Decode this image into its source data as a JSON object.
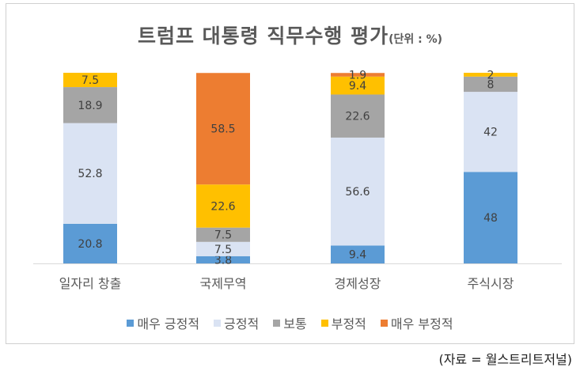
{
  "chart_data": {
    "type": "bar",
    "stacked": true,
    "title": "트럼프 대통령 직무수행 평가",
    "unit_label": "(단위 : %)",
    "categories": [
      "일자리 창출",
      "국제무역",
      "경제성장",
      "주식시장"
    ],
    "series": [
      {
        "name": "매우 긍정적",
        "color": "#5b9bd5",
        "values": [
          20.8,
          3.8,
          9.4,
          48
        ]
      },
      {
        "name": "긍정적",
        "color": "#dae3f3",
        "values": [
          52.8,
          7.5,
          56.6,
          42
        ]
      },
      {
        "name": "보통",
        "color": "#a5a5a5",
        "values": [
          18.9,
          7.5,
          22.6,
          8
        ]
      },
      {
        "name": "부정적",
        "color": "#ffc000",
        "values": [
          7.5,
          22.6,
          9.4,
          2
        ]
      },
      {
        "name": "매우 부정적",
        "color": "#ed7d31",
        "values": [
          null,
          58.5,
          1.9,
          null
        ]
      }
    ],
    "ylim": [
      0,
      100
    ],
    "xlabel": "",
    "ylabel": "",
    "grid": false,
    "legend_position": "bottom"
  },
  "source": "(자료 = 월스트리트저널)"
}
